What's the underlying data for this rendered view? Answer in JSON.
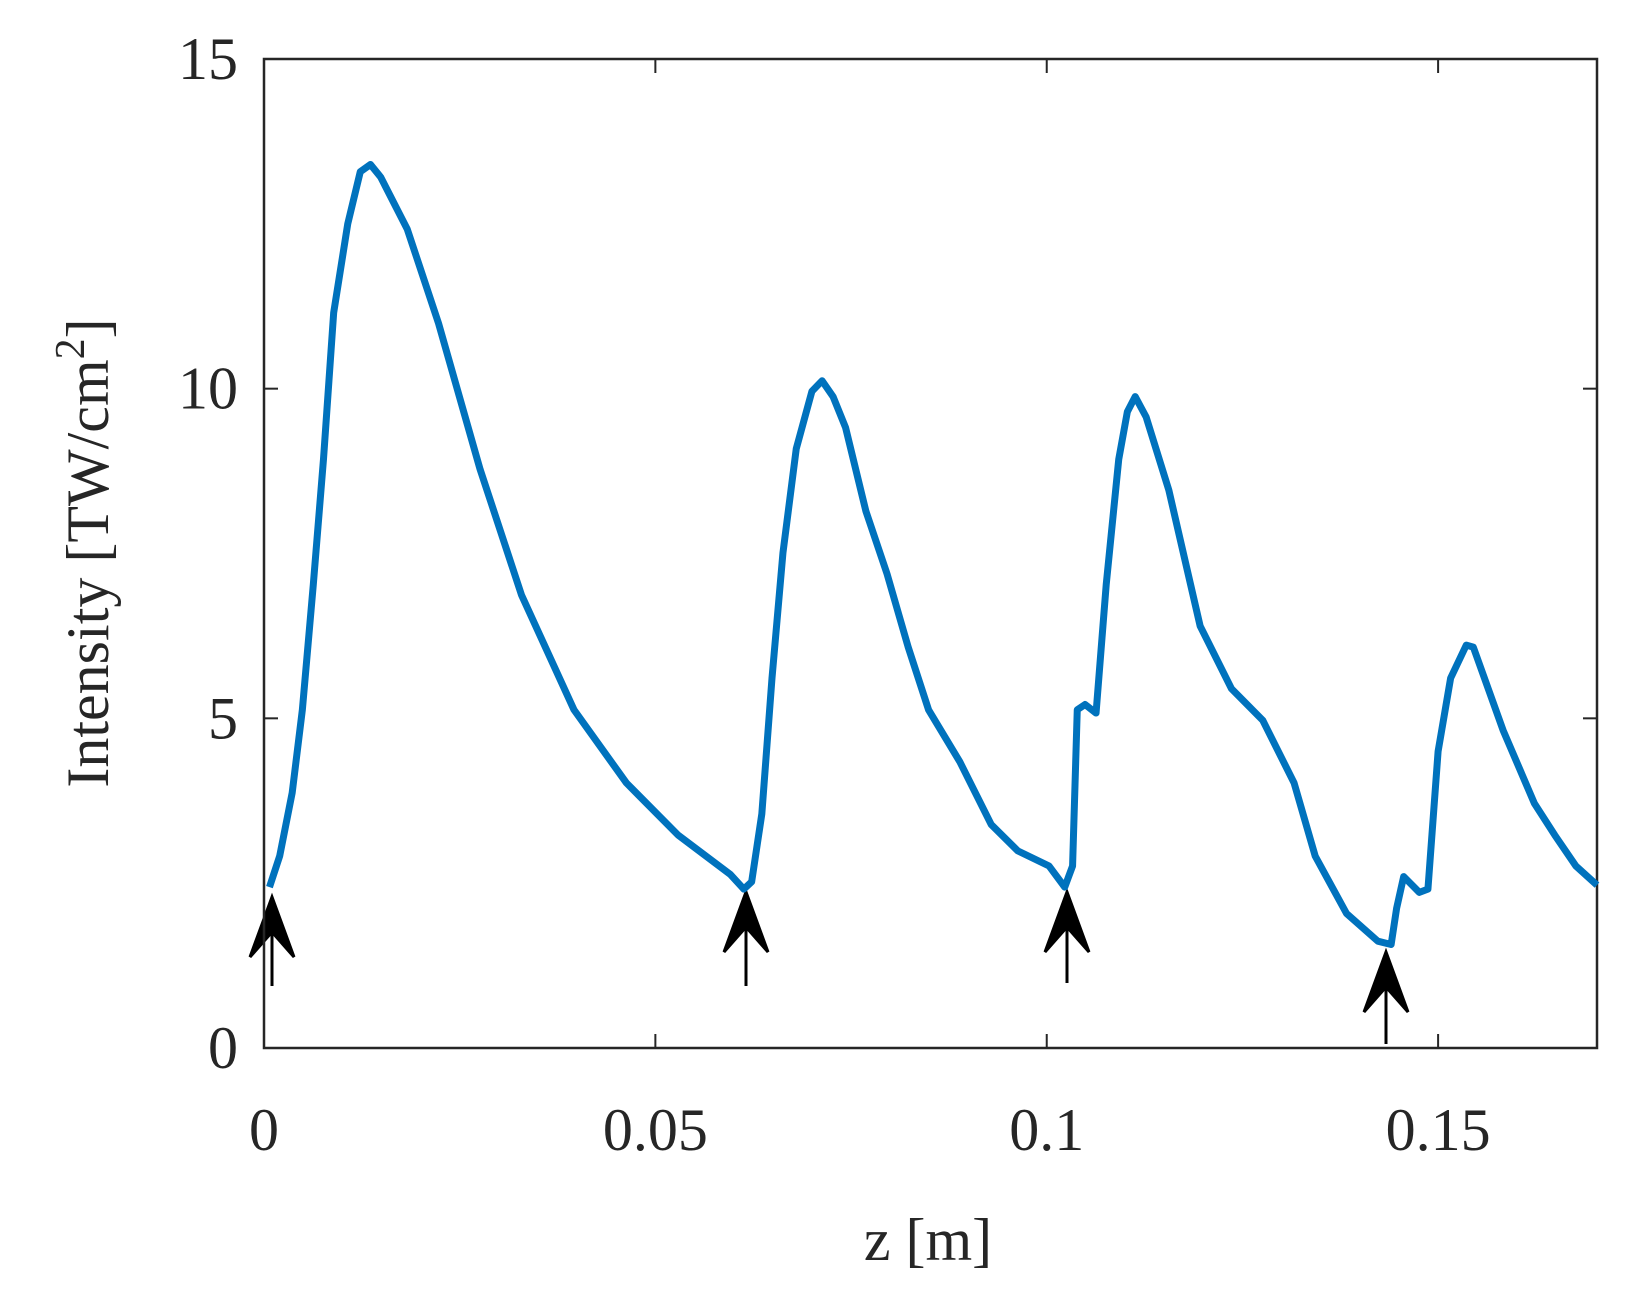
{
  "chart_data": {
    "type": "line",
    "x_label": "z [m]",
    "y_label": {
      "text": "Intensity [TW/cm",
      "superscript": "2",
      "suffix": "]"
    },
    "x": [
      0.0007,
      0.002,
      0.0036,
      0.0049,
      0.0063,
      0.0076,
      0.0089,
      0.0107,
      0.0123,
      0.0136,
      0.0149,
      0.0183,
      0.0223,
      0.0276,
      0.0329,
      0.0396,
      0.0463,
      0.0529,
      0.0596,
      0.0613,
      0.0623,
      0.0636,
      0.0649,
      0.0663,
      0.068,
      0.07,
      0.0713,
      0.0727,
      0.0743,
      0.0769,
      0.0796,
      0.0823,
      0.0849,
      0.0889,
      0.0929,
      0.0963,
      0.1003,
      0.1023,
      0.1033,
      0.1039,
      0.1049,
      0.1063,
      0.1076,
      0.1092,
      0.1103,
      0.1113,
      0.1127,
      0.1156,
      0.1196,
      0.1236,
      0.1276,
      0.1316,
      0.1343,
      0.1383,
      0.1423,
      0.144,
      0.1447,
      0.1456,
      0.1476,
      0.1487,
      0.15,
      0.1516,
      0.1536,
      0.1545,
      0.1583,
      0.1623,
      0.1649,
      0.1676,
      0.1703
    ],
    "series": [
      {
        "color": "#0072bd",
        "values": [
          2.44,
          2.91,
          3.87,
          5.13,
          7.03,
          8.93,
          11.15,
          12.5,
          13.29,
          13.4,
          13.21,
          12.42,
          10.99,
          8.78,
          6.87,
          5.13,
          4.02,
          3.23,
          2.63,
          2.41,
          2.52,
          3.55,
          5.61,
          7.51,
          9.09,
          9.96,
          10.12,
          9.88,
          9.41,
          8.14,
          7.19,
          6.08,
          5.13,
          4.34,
          3.39,
          2.99,
          2.76,
          2.44,
          2.76,
          5.13,
          5.21,
          5.08,
          7.03,
          8.93,
          9.65,
          9.88,
          9.57,
          8.46,
          6.4,
          5.45,
          4.97,
          4.02,
          2.91,
          2.04,
          1.62,
          1.57,
          2.12,
          2.6,
          2.36,
          2.41,
          4.5,
          5.61,
          6.11,
          6.08,
          4.82,
          3.71,
          3.23,
          2.76,
          2.47
        ]
      }
    ],
    "xlim": [
      0,
      0.1703
    ],
    "xticks": [
      0,
      0.05,
      0.1,
      0.15
    ],
    "ylim": [
      0,
      15
    ],
    "yticks": [
      0,
      5,
      10,
      15
    ]
  }
}
